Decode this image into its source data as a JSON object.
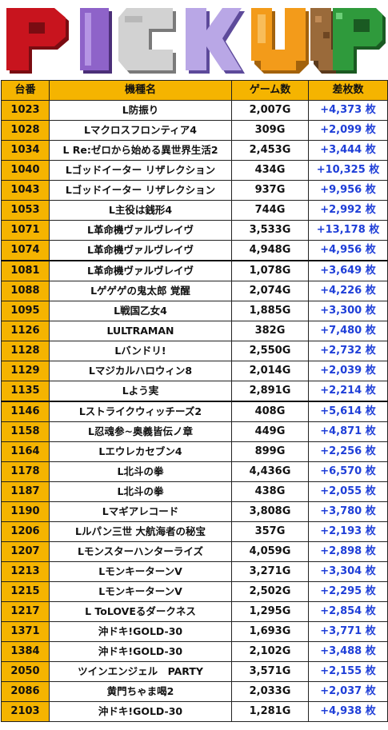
{
  "banner": {
    "title": "PICKUP"
  },
  "colors": {
    "header_bg": "#f5b400",
    "diff_text": "#1f3fd8",
    "letter_P": "#c8141e",
    "letter_I": "#8e63c9",
    "letter_C": "#d2d2d2",
    "letter_K": "#b9a7e6",
    "letter_U": "#f39b1a",
    "letter_U2": "#9a6a3a",
    "letter_P2": "#2f9a3c"
  },
  "table": {
    "headers": {
      "no": "台番",
      "name": "機種名",
      "games": "ゲーム数",
      "diff": "差枚数"
    },
    "rows": [
      {
        "no": "1023",
        "name": "L防振り",
        "games": "2,007G",
        "diff": "+4,373 枚"
      },
      {
        "no": "1028",
        "name": "Lマクロスフロンティア4",
        "games": "309G",
        "diff": "+2,099 枚"
      },
      {
        "no": "1034",
        "name": "L Re:ゼロから始める異世界生活2",
        "games": "2,453G",
        "diff": "+3,444 枚"
      },
      {
        "no": "1040",
        "name": "Lゴッドイーター リザレクション",
        "games": "434G",
        "diff": "+10,325 枚"
      },
      {
        "no": "1043",
        "name": "Lゴッドイーター リザレクション",
        "games": "937G",
        "diff": "+9,956 枚"
      },
      {
        "no": "1053",
        "name": "L主役は銭形4",
        "games": "744G",
        "diff": "+2,992 枚"
      },
      {
        "no": "1071",
        "name": "L革命機ヴァルヴレイヴ",
        "games": "3,533G",
        "diff": "+13,178 枚"
      },
      {
        "no": "1074",
        "name": "L革命機ヴァルヴレイヴ",
        "games": "4,948G",
        "diff": "+4,956 枚"
      },
      {
        "no": "1081",
        "name": "L革命機ヴァルヴレイヴ",
        "games": "1,078G",
        "diff": "+3,649 枚"
      },
      {
        "no": "1088",
        "name": "Lゲゲゲの鬼太郎 覚醒",
        "games": "2,074G",
        "diff": "+4,226 枚"
      },
      {
        "no": "1095",
        "name": "L戦国乙女4",
        "games": "1,885G",
        "diff": "+3,300 枚"
      },
      {
        "no": "1126",
        "name": "LULTRAMAN",
        "games": "382G",
        "diff": "+7,480 枚"
      },
      {
        "no": "1128",
        "name": "Lバンドリ!",
        "games": "2,550G",
        "diff": "+2,732 枚"
      },
      {
        "no": "1129",
        "name": "Lマジカルハロウィン8",
        "games": "2,014G",
        "diff": "+2,039 枚"
      },
      {
        "no": "1135",
        "name": "Lよう実",
        "games": "2,891G",
        "diff": "+2,214 枚"
      },
      {
        "no": "1146",
        "name": "Lストライクウィッチーズ2",
        "games": "408G",
        "diff": "+5,614 枚"
      },
      {
        "no": "1158",
        "name": "L忍魂参~奥義皆伝ノ章",
        "games": "449G",
        "diff": "+4,871 枚"
      },
      {
        "no": "1164",
        "name": "Lエウレカセブン4",
        "games": "899G",
        "diff": "+2,256 枚"
      },
      {
        "no": "1178",
        "name": "L北斗の拳",
        "games": "4,436G",
        "diff": "+6,570 枚"
      },
      {
        "no": "1187",
        "name": "L北斗の拳",
        "games": "438G",
        "diff": "+2,055 枚"
      },
      {
        "no": "1190",
        "name": "Lマギアレコード",
        "games": "3,808G",
        "diff": "+3,780 枚"
      },
      {
        "no": "1206",
        "name": "Lルパン三世 大航海者の秘宝",
        "games": "357G",
        "diff": "+2,193 枚"
      },
      {
        "no": "1207",
        "name": "Lモンスターハンターライズ",
        "games": "4,059G",
        "diff": "+2,898 枚"
      },
      {
        "no": "1213",
        "name": "LモンキーターンV",
        "games": "3,271G",
        "diff": "+3,304 枚"
      },
      {
        "no": "1215",
        "name": "LモンキーターンV",
        "games": "2,502G",
        "diff": "+2,295 枚"
      },
      {
        "no": "1217",
        "name": "L ToLOVEるダークネス",
        "games": "1,295G",
        "diff": "+2,854 枚"
      },
      {
        "no": "1371",
        "name": "沖ドキ!GOLD-30",
        "games": "1,693G",
        "diff": "+3,771 枚"
      },
      {
        "no": "1384",
        "name": "沖ドキ!GOLD-30",
        "games": "2,102G",
        "diff": "+3,488 枚"
      },
      {
        "no": "2050",
        "name": "ツインエンジェル　PARTY",
        "games": "3,571G",
        "diff": "+2,155 枚"
      },
      {
        "no": "2086",
        "name": "黄門ちゃま喝2",
        "games": "2,033G",
        "diff": "+2,037 枚"
      },
      {
        "no": "2103",
        "name": "沖ドキ!GOLD-30",
        "games": "1,281G",
        "diff": "+4,938 枚"
      }
    ]
  }
}
